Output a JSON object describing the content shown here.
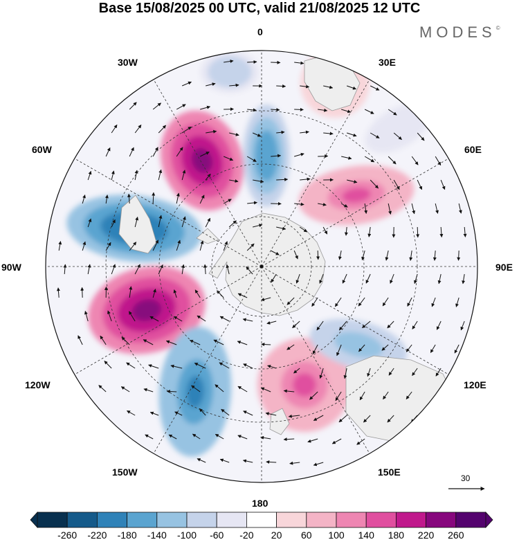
{
  "title": "Base 15/08/2025 00 UTC, valid 21/08/2025 12 UTC",
  "brand": "MODES",
  "brand_mark": "©",
  "map": {
    "projection": "south-polar-stereographic",
    "longitude_labels": [
      "0",
      "30E",
      "60E",
      "90E",
      "120E",
      "150E",
      "180",
      "150W",
      "120W",
      "90W",
      "60W",
      "30W"
    ],
    "land_color": "#eeeeee",
    "coast_color": "#999999"
  },
  "reference_vector": {
    "value": "30"
  },
  "colorbar": {
    "ticks": [
      "-260",
      "-220",
      "-180",
      "-140",
      "-100",
      "-60",
      "-20",
      "20",
      "60",
      "100",
      "140",
      "180",
      "220",
      "260"
    ],
    "colors": [
      "#08304f",
      "#155a8a",
      "#2f82b8",
      "#5aa4d0",
      "#97c3e2",
      "#c5d3ea",
      "#e6e6f3",
      "#ffffff",
      "#f8d6da",
      "#f4b4c6",
      "#ee86b2",
      "#e04f9f",
      "#c0198c",
      "#87077d",
      "#54036e"
    ]
  },
  "anomalies": [
    {
      "name": "pos-south-atlantic",
      "value": 240
    },
    {
      "name": "neg-weddell-west",
      "value": -220
    },
    {
      "name": "pos-south-pacific-east",
      "value": 240
    },
    {
      "name": "neg-south-pacific",
      "value": -200
    },
    {
      "name": "neg-south-atlantic-mid",
      "value": -180
    },
    {
      "name": "pos-south-indian",
      "value": 140
    },
    {
      "name": "pos-tasman",
      "value": 140
    },
    {
      "name": "neg-south-of-australia",
      "value": -140
    },
    {
      "name": "pos-south-africa",
      "value": 80
    },
    {
      "name": "neg-north-atlantic-rim",
      "value": -100
    },
    {
      "name": "neg-indian-ne",
      "value": -60
    }
  ]
}
